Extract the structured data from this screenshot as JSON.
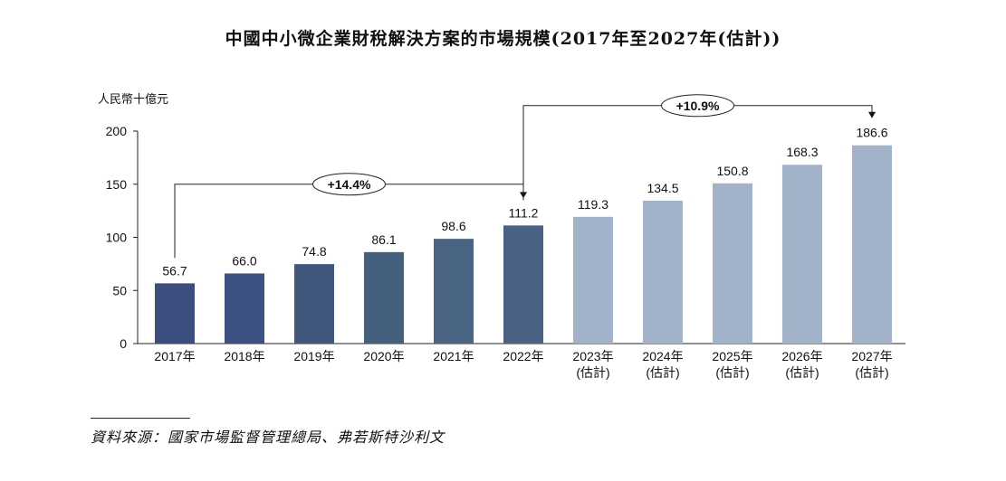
{
  "chart_data": {
    "type": "bar",
    "title": "中國中小微企業財稅解決方案的市場規模(2017年至2027年(估計))",
    "ylabel": "人民幣十億元",
    "xlabel": "",
    "ylim": [
      0,
      200
    ],
    "yticks": [
      0,
      50,
      100,
      150,
      200
    ],
    "categories": [
      [
        "2017年"
      ],
      [
        "2018年"
      ],
      [
        "2019年"
      ],
      [
        "2020年"
      ],
      [
        "2021年"
      ],
      [
        "2022年"
      ],
      [
        "2023年",
        "(估計)"
      ],
      [
        "2024年",
        "(估計)"
      ],
      [
        "2025年",
        "(估計)"
      ],
      [
        "2026年",
        "(估計)"
      ],
      [
        "2027年",
        "(估計)"
      ]
    ],
    "values": [
      56.7,
      66.0,
      74.8,
      86.1,
      98.6,
      111.2,
      119.3,
      134.5,
      150.8,
      168.3,
      186.6
    ],
    "value_labels": [
      "56.7",
      "66.0",
      "74.8",
      "86.1",
      "98.6",
      "111.2",
      "119.3",
      "134.5",
      "150.8",
      "168.3",
      "186.6"
    ],
    "bar_colors": [
      "#3b4e7e",
      "#3c5282",
      "#41587e",
      "#45607f",
      "#4a6483",
      "#4a6385",
      "#a2b2c8",
      "#a2b2c8",
      "#a2b2c8",
      "#a2b2c8",
      "#a2b2c8"
    ],
    "annotations": [
      {
        "label": "+14.4%",
        "from_index": 0,
        "to_index": 5,
        "level": 150
      },
      {
        "label": "+10.9%",
        "from_index": 5,
        "to_index": 10,
        "level": 224
      }
    ],
    "grid": false
  },
  "footer": {
    "source": "資料來源：國家市場監督管理總局、弗若斯特沙利文"
  }
}
